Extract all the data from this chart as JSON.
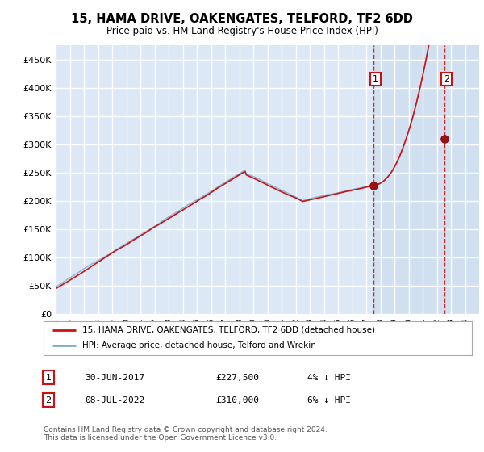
{
  "title": "15, HAMA DRIVE, OAKENGATES, TELFORD, TF2 6DD",
  "subtitle": "Price paid vs. HM Land Registry's House Price Index (HPI)",
  "ylabel_ticks": [
    "£0",
    "£50K",
    "£100K",
    "£150K",
    "£200K",
    "£250K",
    "£300K",
    "£350K",
    "£400K",
    "£450K"
  ],
  "ytick_vals": [
    0,
    50000,
    100000,
    150000,
    200000,
    250000,
    300000,
    350000,
    400000,
    450000
  ],
  "ylim": [
    0,
    475000
  ],
  "xlim_start": 1995.0,
  "xlim_end": 2025.0,
  "bg_color": "#dce8f5",
  "plot_bg_color": "#dce8f5",
  "shaded_bg_color": "#d0e0f0",
  "grid_color": "#ffffff",
  "hpi_color": "#7aafd4",
  "price_color": "#cc1111",
  "marker1_year": 2017.5,
  "marker2_year": 2022.54,
  "marker1_price": 227500,
  "marker2_price": 310000,
  "legend_label1": "15, HAMA DRIVE, OAKENGATES, TELFORD, TF2 6DD (detached house)",
  "legend_label2": "HPI: Average price, detached house, Telford and Wrekin",
  "note1_num": "1",
  "note1_date": "30-JUN-2017",
  "note1_price": "£227,500",
  "note1_hpi": "4% ↓ HPI",
  "note2_num": "2",
  "note2_date": "08-JUL-2022",
  "note2_price": "£310,000",
  "note2_hpi": "6% ↓ HPI",
  "footer": "Contains HM Land Registry data © Crown copyright and database right 2024.\nThis data is licensed under the Open Government Licence v3.0."
}
